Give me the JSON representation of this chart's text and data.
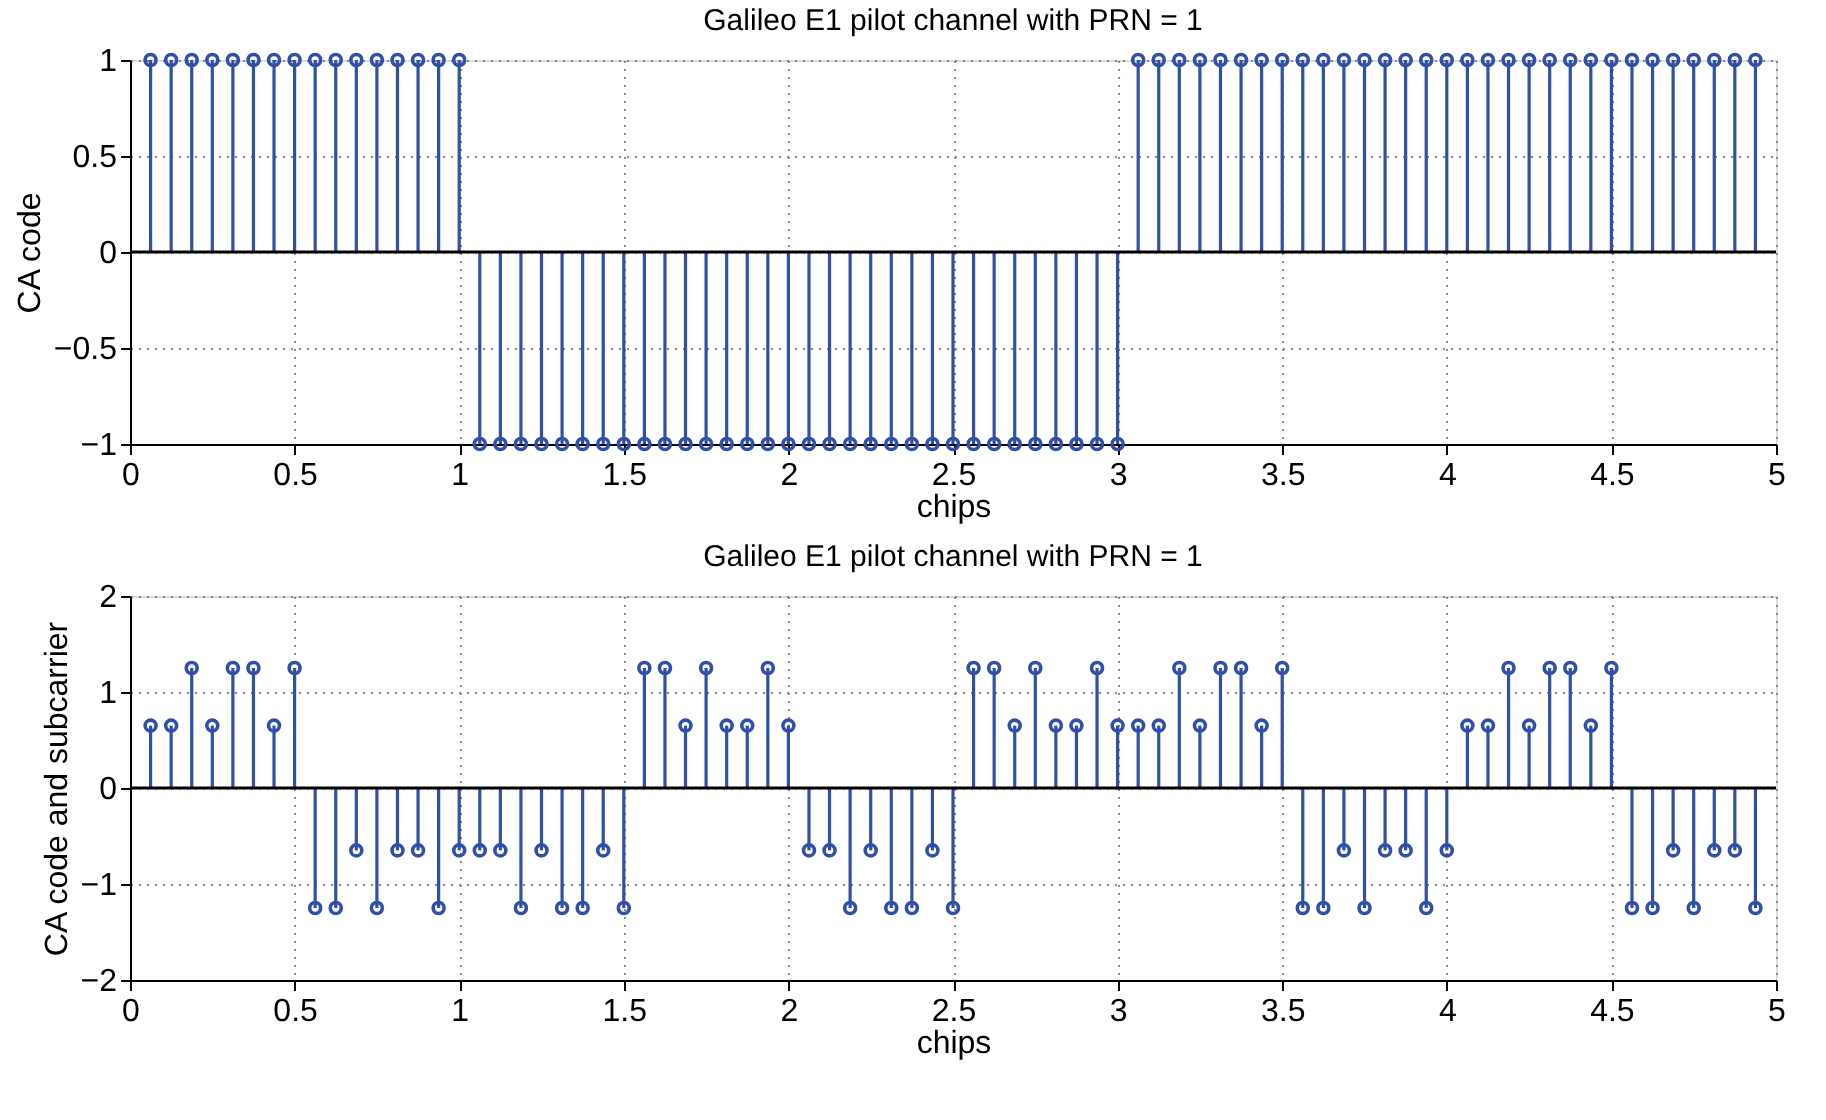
{
  "chart_data": [
    {
      "type": "lollipop",
      "title": "Galileo E1 pilot channel with PRN = 1",
      "xlabel": "chips",
      "ylabel": "CA code",
      "x": [
        0.0625,
        0.125,
        0.1875,
        0.25,
        0.3125,
        0.375,
        0.4375,
        0.5,
        0.5625,
        0.625,
        0.6875,
        0.75,
        0.8125,
        0.875,
        0.9375,
        1,
        1.0625,
        1.125,
        1.1875,
        1.25,
        1.3125,
        1.375,
        1.4375,
        1.5,
        1.5625,
        1.625,
        1.6875,
        1.75,
        1.8125,
        1.875,
        1.9375,
        2,
        2.0625,
        2.125,
        2.1875,
        2.25,
        2.3125,
        2.375,
        2.4375,
        2.5,
        2.5625,
        2.625,
        2.6875,
        2.75,
        2.8125,
        2.875,
        2.9375,
        3,
        3.0625,
        3.125,
        3.1875,
        3.25,
        3.3125,
        3.375,
        3.4375,
        3.5,
        3.5625,
        3.625,
        3.6875,
        3.75,
        3.8125,
        3.875,
        3.9375,
        4,
        4.0625,
        4.125,
        4.1875,
        4.25,
        4.3125,
        4.375,
        4.4375,
        4.5,
        4.5625,
        4.625,
        4.6875,
        4.75,
        4.8125,
        4.875,
        4.9375
      ],
      "series": [
        {
          "color": "#2f4fa8",
          "values": [
            1,
            1,
            1,
            1,
            1,
            1,
            1,
            1,
            1,
            1,
            1,
            1,
            1,
            1,
            1,
            1,
            -1,
            -1,
            -1,
            -1,
            -1,
            -1,
            -1,
            -1,
            -1,
            -1,
            -1,
            -1,
            -1,
            -1,
            -1,
            -1,
            -1,
            -1,
            -1,
            -1,
            -1,
            -1,
            -1,
            -1,
            -1,
            -1,
            -1,
            -1,
            -1,
            -1,
            -1,
            -1,
            1,
            1,
            1,
            1,
            1,
            1,
            1,
            1,
            1,
            1,
            1,
            1,
            1,
            1,
            1,
            1,
            1,
            1,
            1,
            1,
            1,
            1,
            1,
            1,
            1,
            1,
            1,
            1,
            1,
            1,
            1
          ]
        }
      ],
      "xlim": [
        0,
        5
      ],
      "xticks": [
        0,
        0.5,
        1,
        1.5,
        2,
        2.5,
        3,
        3.5,
        4,
        4.5,
        5
      ],
      "ylim": [
        -1,
        1
      ],
      "yticks": [
        -1,
        -0.5,
        0,
        0.5,
        1
      ],
      "ref_lines": [
        {
          "axis": "y",
          "value": 0,
          "color": "#000000"
        }
      ],
      "grid": true,
      "marker": "circle"
    },
    {
      "type": "lollipop",
      "title": "Galileo E1 pilot channel with PRN = 1",
      "xlabel": "chips",
      "ylabel": "CA code and subcarrier",
      "x": [
        0.0625,
        0.125,
        0.1875,
        0.25,
        0.3125,
        0.375,
        0.4375,
        0.5,
        0.5625,
        0.625,
        0.6875,
        0.75,
        0.8125,
        0.875,
        0.9375,
        1,
        1.0625,
        1.125,
        1.1875,
        1.25,
        1.3125,
        1.375,
        1.4375,
        1.5,
        1.5625,
        1.625,
        1.6875,
        1.75,
        1.8125,
        1.875,
        1.9375,
        2,
        2.0625,
        2.125,
        2.1875,
        2.25,
        2.3125,
        2.375,
        2.4375,
        2.5,
        2.5625,
        2.625,
        2.6875,
        2.75,
        2.8125,
        2.875,
        2.9375,
        3,
        3.0625,
        3.125,
        3.1875,
        3.25,
        3.3125,
        3.375,
        3.4375,
        3.5,
        3.5625,
        3.625,
        3.6875,
        3.75,
        3.8125,
        3.875,
        3.9375,
        4,
        4.0625,
        4.125,
        4.1875,
        4.25,
        4.3125,
        4.375,
        4.4375,
        4.5,
        4.5625,
        4.625,
        4.6875,
        4.75,
        4.8125,
        4.875,
        4.9375
      ],
      "series": [
        {
          "color": "#2f4fa8",
          "values": [
            0.65,
            0.65,
            1.25,
            0.65,
            1.25,
            1.25,
            0.65,
            1.25,
            -1.25,
            -1.25,
            -0.65,
            -1.25,
            -0.65,
            -0.65,
            -1.25,
            -0.65,
            -0.65,
            -0.65,
            -1.25,
            -0.65,
            -1.25,
            -1.25,
            -0.65,
            -1.25,
            1.25,
            1.25,
            0.65,
            1.25,
            0.65,
            0.65,
            1.25,
            0.65,
            -0.65,
            -0.65,
            -1.25,
            -0.65,
            -1.25,
            -1.25,
            -0.65,
            -1.25,
            1.25,
            1.25,
            0.65,
            1.25,
            0.65,
            0.65,
            1.25,
            0.65,
            0.65,
            0.65,
            1.25,
            0.65,
            1.25,
            1.25,
            0.65,
            1.25,
            -1.25,
            -1.25,
            -0.65,
            -1.25,
            -0.65,
            -0.65,
            -1.25,
            -0.65,
            0.65,
            0.65,
            1.25,
            0.65,
            1.25,
            1.25,
            0.65,
            1.25,
            -1.25,
            -1.25,
            -0.65,
            -1.25,
            -0.65,
            -0.65,
            -1.25
          ]
        }
      ],
      "xlim": [
        0,
        5
      ],
      "xticks": [
        0,
        0.5,
        1,
        1.5,
        2,
        2.5,
        3,
        3.5,
        4,
        4.5,
        5
      ],
      "ylim": [
        -2,
        2
      ],
      "yticks": [
        -2,
        -1,
        0,
        1,
        2
      ],
      "ref_lines": [
        {
          "axis": "y",
          "value": 0,
          "color": "#000000"
        }
      ],
      "grid": true,
      "marker": "circle"
    }
  ]
}
